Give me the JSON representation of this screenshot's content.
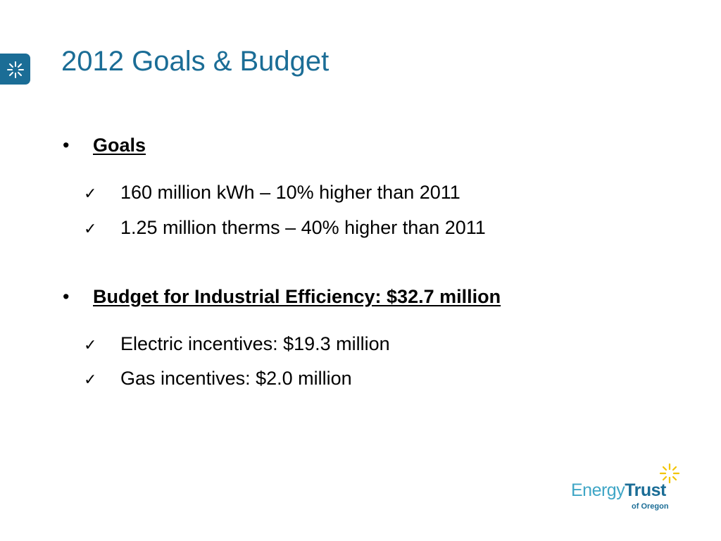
{
  "colors": {
    "title": "#1b6d96",
    "brand_dark": "#1b6d96",
    "brand_light": "#3fa6c6",
    "sun": "#f2c400",
    "text": "#000000"
  },
  "slide": {
    "title": "2012 Goals & Budget",
    "icons": {
      "badge": "sunburst-icon",
      "check": "checkmark-icon"
    },
    "sections": [
      {
        "bullet": "•",
        "heading": "Goals",
        "items": [
          {
            "check": "✓",
            "text": "160 million kWh – 10% higher than 2011"
          },
          {
            "check": "✓",
            "text": "1.25 million therms – 40% higher than 2011"
          }
        ]
      },
      {
        "bullet": "•",
        "heading": "Budget for Industrial Efficiency: $32.7 million",
        "items": [
          {
            "check": "✓",
            "text": "Electric incentives: $19.3 million"
          },
          {
            "check": "✓",
            "text": "Gas incentives: $2.0 million"
          }
        ]
      }
    ]
  },
  "logo": {
    "word_energy": "Energy",
    "word_trust": "Trust",
    "subtitle": "of Oregon",
    "icon": "sunburst-icon"
  }
}
